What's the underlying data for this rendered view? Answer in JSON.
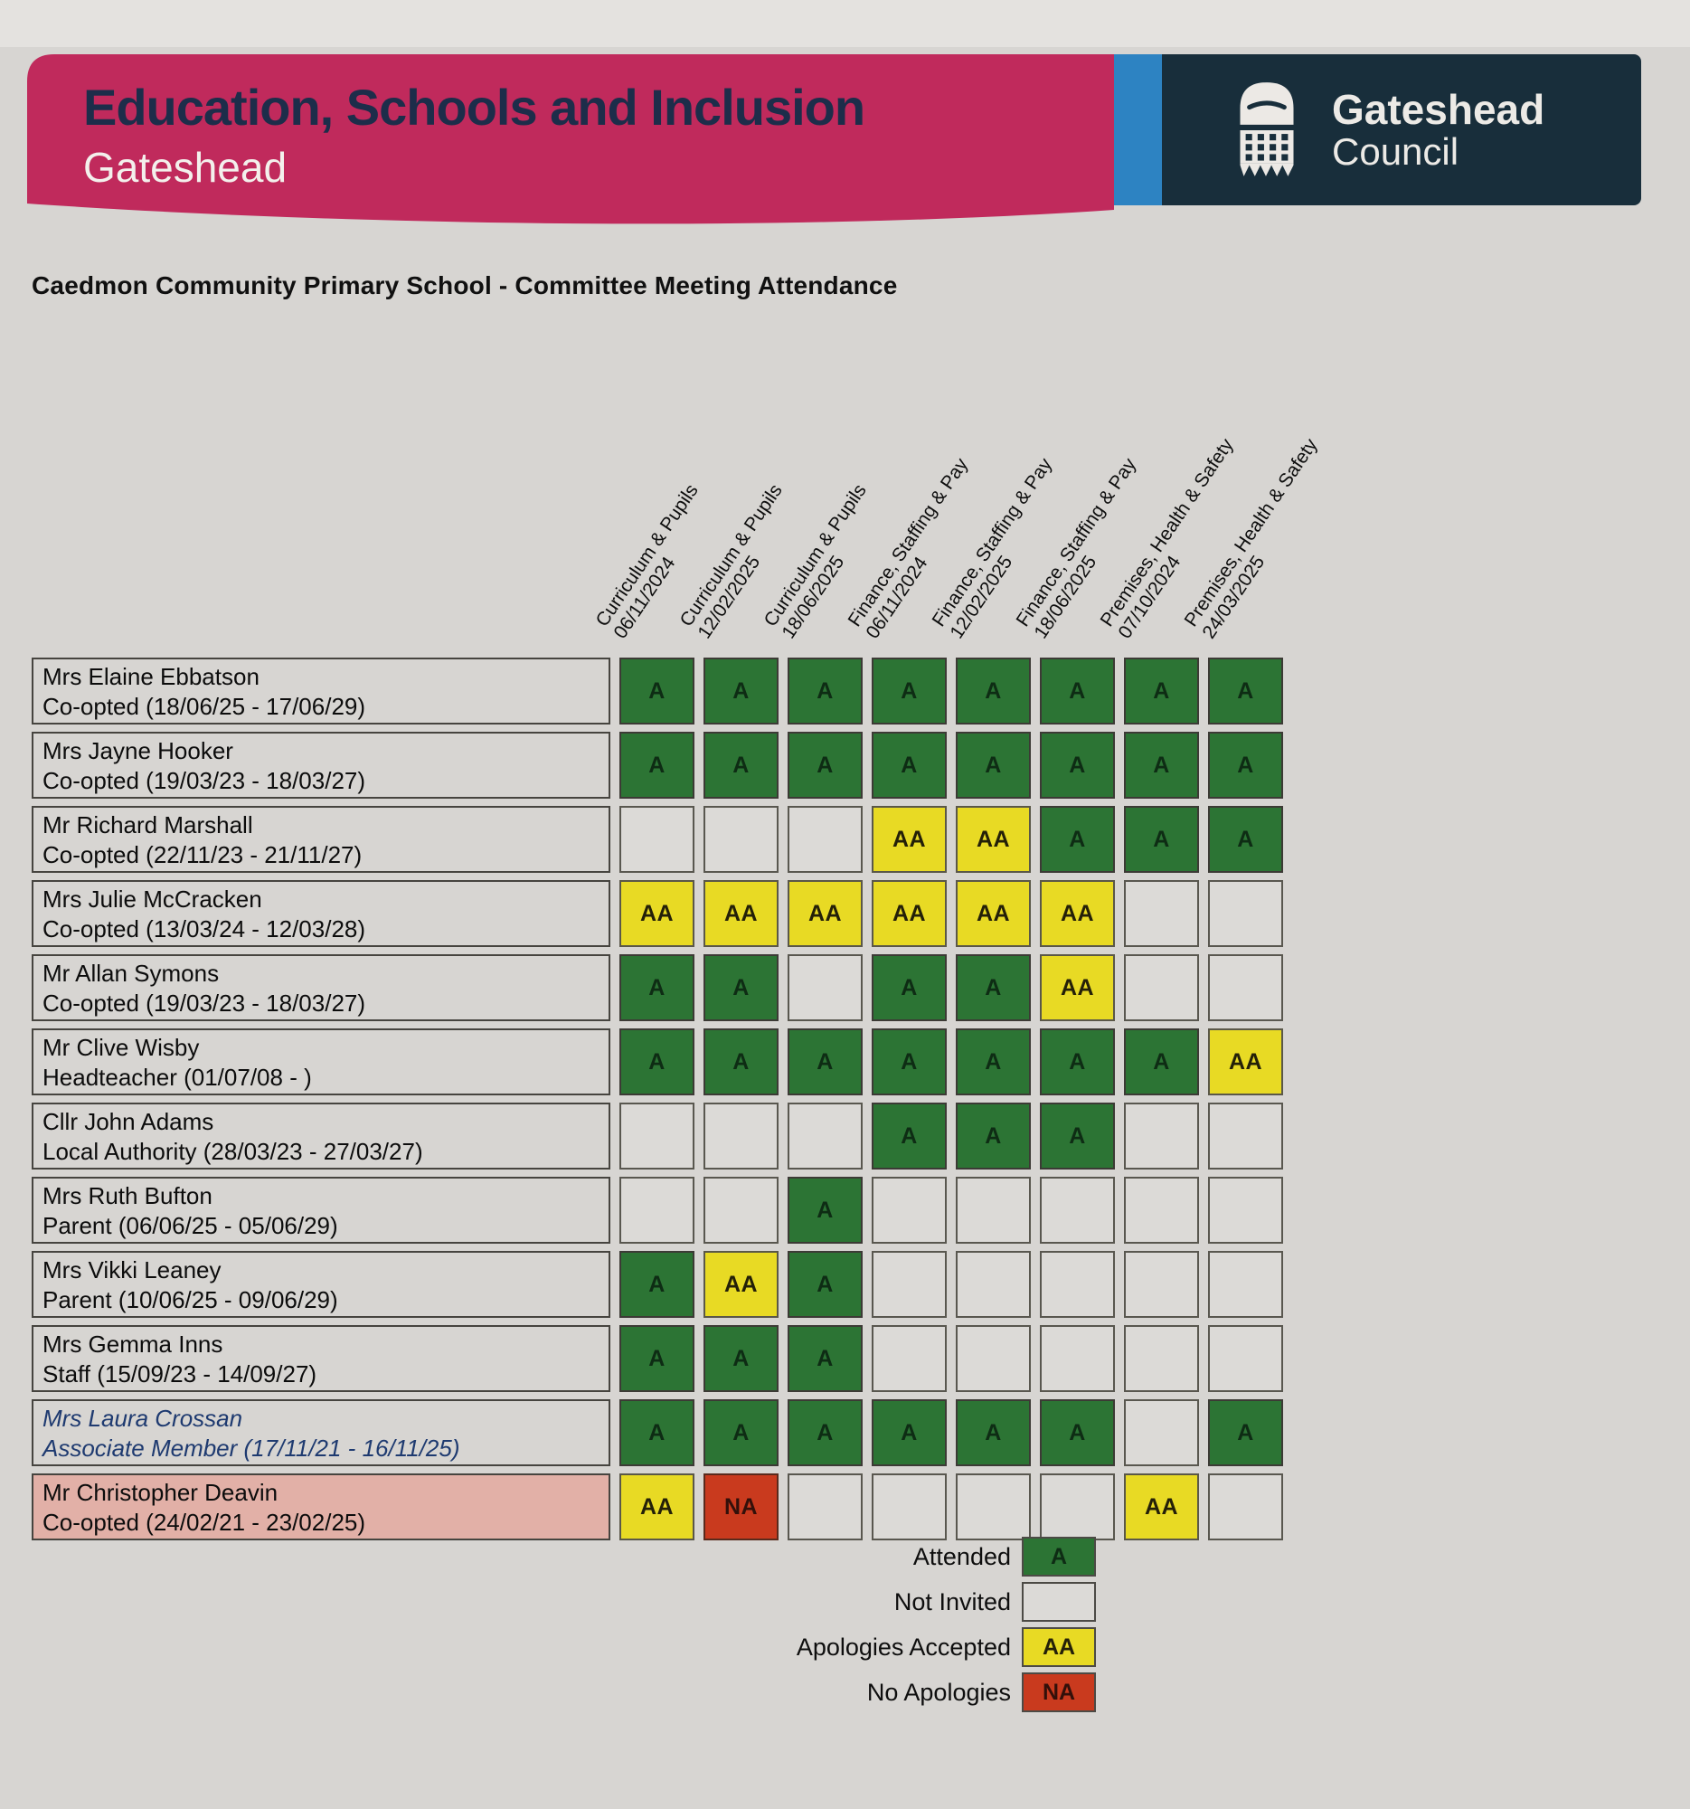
{
  "banner": {
    "department": "Education, Schools and Inclusion",
    "area": "Gateshead",
    "council_name": "Gateshead",
    "council_word": "Council"
  },
  "title": "Caedmon Community Primary School - Committee Meeting Attendance",
  "meetings": [
    {
      "committee": "Curriculum & Pupils",
      "date": "06/11/2024"
    },
    {
      "committee": "Curriculum & Pupils",
      "date": "12/02/2025"
    },
    {
      "committee": "Curriculum & Pupils",
      "date": "18/06/2025"
    },
    {
      "committee": "Finance, Staffing & Pay",
      "date": "06/11/2024"
    },
    {
      "committee": "Finance, Staffing & Pay",
      "date": "12/02/2025"
    },
    {
      "committee": "Finance, Staffing & Pay",
      "date": "18/06/2025"
    },
    {
      "committee": "Premises, Health & Safety",
      "date": "07/10/2024"
    },
    {
      "committee": "Premises, Health & Safety",
      "date": "24/03/2025"
    }
  ],
  "members": [
    {
      "name": "Mrs Elaine Ebbatson",
      "role": "Co-opted (18/06/25 - 17/06/29)",
      "cells": [
        "A",
        "A",
        "A",
        "A",
        "A",
        "A",
        "A",
        "A"
      ]
    },
    {
      "name": "Mrs Jayne Hooker",
      "role": "Co-opted (19/03/23 - 18/03/27)",
      "cells": [
        "A",
        "A",
        "A",
        "A",
        "A",
        "A",
        "A",
        "A"
      ]
    },
    {
      "name": "Mr Richard Marshall",
      "role": "Co-opted (22/11/23 - 21/11/27)",
      "cells": [
        "",
        "",
        "",
        "AA",
        "AA",
        "A",
        "A",
        "A"
      ]
    },
    {
      "name": "Mrs Julie McCracken",
      "role": "Co-opted (13/03/24 - 12/03/28)",
      "cells": [
        "AA",
        "AA",
        "AA",
        "AA",
        "AA",
        "AA",
        "",
        ""
      ]
    },
    {
      "name": "Mr Allan Symons",
      "role": "Co-opted (19/03/23 - 18/03/27)",
      "cells": [
        "A",
        "A",
        "",
        "A",
        "A",
        "AA",
        "",
        ""
      ]
    },
    {
      "name": "Mr Clive Wisby",
      "role": "Headteacher (01/07/08 - )",
      "cells": [
        "A",
        "A",
        "A",
        "A",
        "A",
        "A",
        "A",
        "AA"
      ]
    },
    {
      "name": "Cllr John Adams",
      "role": "Local Authority (28/03/23 - 27/03/27)",
      "cells": [
        "",
        "",
        "",
        "A",
        "A",
        "A",
        "",
        ""
      ]
    },
    {
      "name": "Mrs Ruth Bufton",
      "role": "Parent (06/06/25 - 05/06/29)",
      "cells": [
        "",
        "",
        "A",
        "",
        "",
        "",
        "",
        ""
      ]
    },
    {
      "name": "Mrs Vikki Leaney",
      "role": "Parent (10/06/25 - 09/06/29)",
      "cells": [
        "A",
        "AA",
        "A",
        "",
        "",
        "",
        "",
        ""
      ]
    },
    {
      "name": "Mrs Gemma Inns",
      "role": "Staff (15/09/23 - 14/09/27)",
      "cells": [
        "A",
        "A",
        "A",
        "",
        "",
        "",
        "",
        ""
      ]
    },
    {
      "name": "Mrs Laura Crossan",
      "role": "Associate Member (17/11/21 - 16/11/25)",
      "cells": [
        "A",
        "A",
        "A",
        "A",
        "A",
        "A",
        "",
        "A"
      ],
      "variant": "associate"
    },
    {
      "name": "Mr Christopher Deavin",
      "role": "Co-opted (24/02/21 - 23/02/25)",
      "cells": [
        "AA",
        "NA",
        "",
        "",
        "",
        "",
        "AA",
        ""
      ],
      "variant": "highlight"
    }
  ],
  "legend": {
    "items": [
      {
        "label": "Attended",
        "code": "A",
        "type": "A"
      },
      {
        "label": "Not Invited",
        "code": "",
        "type": "empty"
      },
      {
        "label": "Apologies Accepted",
        "code": "AA",
        "type": "AA"
      },
      {
        "label": "No Apologies",
        "code": "NA",
        "type": "NA"
      }
    ]
  },
  "colors": {
    "attended": "#2c7434",
    "apologies_accepted": "#e8da24",
    "no_apologies": "#c93a1e",
    "not_invited": "#dcdad7",
    "highlight_row": "#e2b0a7",
    "banner_pink": "#c02a5c",
    "banner_blue": "#2d83c2",
    "banner_navy": "#182e3b"
  }
}
